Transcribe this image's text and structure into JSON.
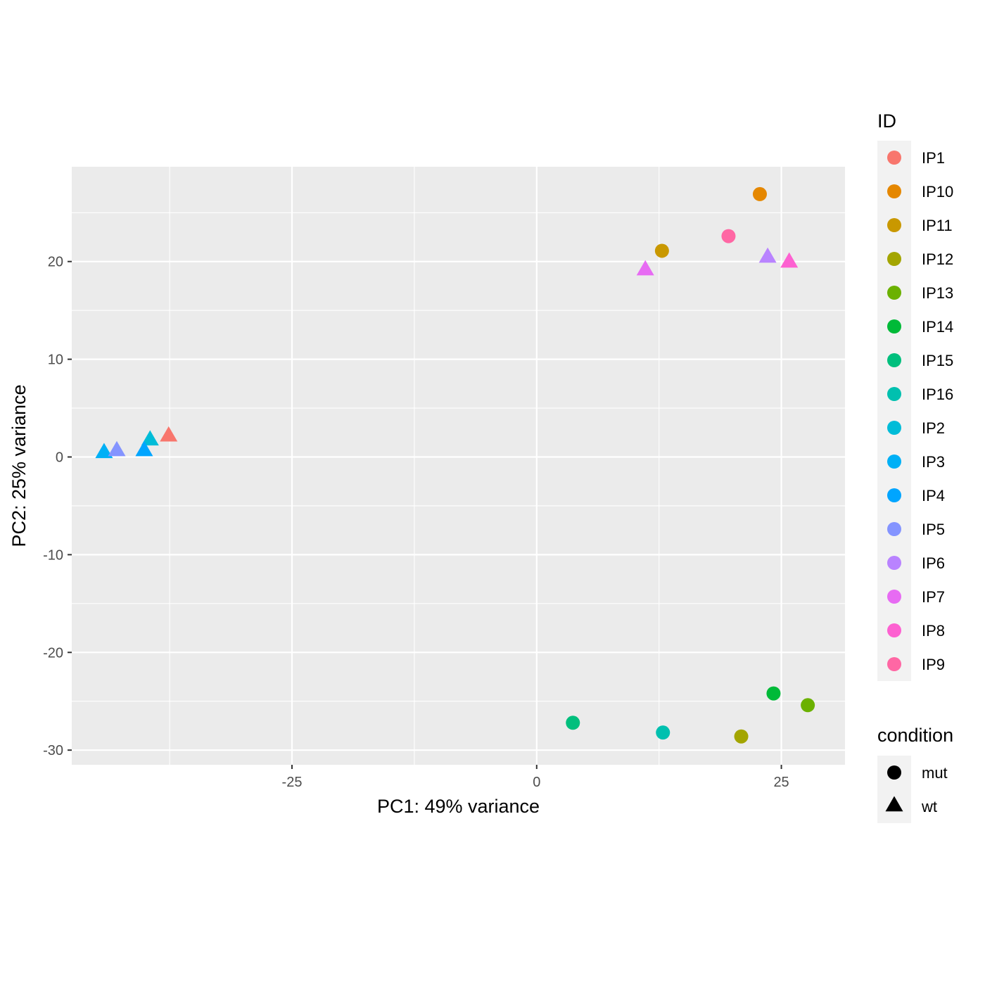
{
  "chart_data": {
    "type": "scatter",
    "xlabel": "PC1: 49% variance",
    "ylabel": "PC2: 25% variance",
    "xlim": [
      -47.5,
      31.5
    ],
    "ylim": [
      -31.5,
      29.7
    ],
    "x_ticks": [
      -25,
      0,
      25
    ],
    "y_ticks": [
      -30,
      -20,
      -10,
      0,
      10,
      20
    ],
    "grid": true,
    "legend_position": "right",
    "color_legend": {
      "title": "ID",
      "items": [
        {
          "label": "IP1",
          "color": "#F8766D"
        },
        {
          "label": "IP10",
          "color": "#E58700"
        },
        {
          "label": "IP11",
          "color": "#C99800"
        },
        {
          "label": "IP12",
          "color": "#A3A500"
        },
        {
          "label": "IP13",
          "color": "#6BB100"
        },
        {
          "label": "IP14",
          "color": "#00BA38"
        },
        {
          "label": "IP15",
          "color": "#00BF7D"
        },
        {
          "label": "IP16",
          "color": "#00C0AF"
        },
        {
          "label": "IP2",
          "color": "#00BCD8"
        },
        {
          "label": "IP3",
          "color": "#00B0F6"
        },
        {
          "label": "IP4",
          "color": "#00A5FF"
        },
        {
          "label": "IP5",
          "color": "#8494FF"
        },
        {
          "label": "IP6",
          "color": "#B983FF"
        },
        {
          "label": "IP7",
          "color": "#E76BF3"
        },
        {
          "label": "IP8",
          "color": "#FD61D1"
        },
        {
          "label": "IP9",
          "color": "#FF67A4"
        }
      ]
    },
    "shape_legend": {
      "title": "condition",
      "items": [
        {
          "label": "mut",
          "shape": "circle"
        },
        {
          "label": "wt",
          "shape": "triangle"
        }
      ]
    },
    "points": [
      {
        "id": "IP1",
        "condition": "wt",
        "x": -37.6,
        "y": 2.1
      },
      {
        "id": "IP2",
        "condition": "wt",
        "x": -39.5,
        "y": 1.7
      },
      {
        "id": "IP3",
        "condition": "wt",
        "x": -44.2,
        "y": 0.4
      },
      {
        "id": "IP4",
        "condition": "wt",
        "x": -40.1,
        "y": 0.6
      },
      {
        "id": "IP5",
        "condition": "wt",
        "x": -42.9,
        "y": 0.6
      },
      {
        "id": "IP6",
        "condition": "wt",
        "x": 23.6,
        "y": 20.4
      },
      {
        "id": "IP7",
        "condition": "wt",
        "x": 11.1,
        "y": 19.1
      },
      {
        "id": "IP8",
        "condition": "wt",
        "x": 25.8,
        "y": 19.9
      },
      {
        "id": "IP9",
        "condition": "mut",
        "x": 19.6,
        "y": 22.6
      },
      {
        "id": "IP10",
        "condition": "mut",
        "x": 22.8,
        "y": 26.9
      },
      {
        "id": "IP11",
        "condition": "mut",
        "x": 12.8,
        "y": 21.1
      },
      {
        "id": "IP12",
        "condition": "mut",
        "x": 20.9,
        "y": -28.6
      },
      {
        "id": "IP13",
        "condition": "mut",
        "x": 27.7,
        "y": -25.4
      },
      {
        "id": "IP14",
        "condition": "mut",
        "x": 24.2,
        "y": -24.2
      },
      {
        "id": "IP15",
        "condition": "mut",
        "x": 3.7,
        "y": -27.2
      },
      {
        "id": "IP16",
        "condition": "mut",
        "x": 12.9,
        "y": -28.2
      }
    ]
  }
}
